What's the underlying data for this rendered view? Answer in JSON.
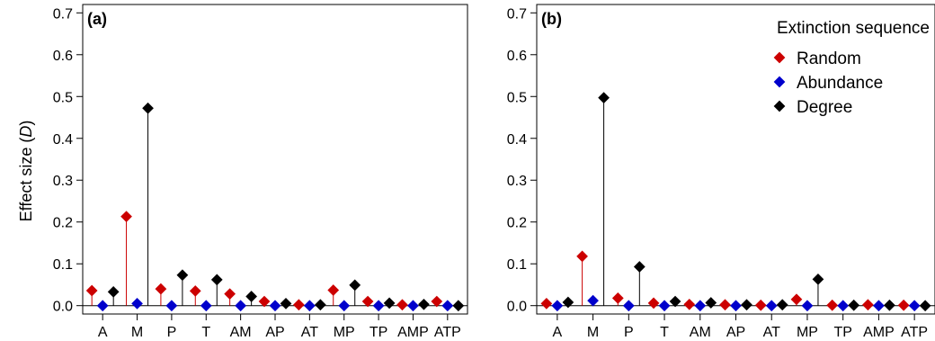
{
  "figure": {
    "ylabel_prefix": "Effect size (",
    "ylabel_var": "D",
    "ylabel_suffix": ")",
    "legend": {
      "title": "Extinction sequence",
      "entries": [
        {
          "label": "Random",
          "color": "#cc0000"
        },
        {
          "label": "Abundance",
          "color": "#0000cc"
        },
        {
          "label": "Degree",
          "color": "#000000"
        }
      ]
    }
  },
  "chart_data": [
    {
      "type": "scatter",
      "panel_label": "(a)",
      "categories": [
        "A",
        "M",
        "P",
        "T",
        "AM",
        "AP",
        "AT",
        "MP",
        "TP",
        "AMP",
        "ATP"
      ],
      "ylim": [
        -0.02,
        0.72
      ],
      "yticks": [
        "0.0",
        "0.1",
        "0.2",
        "0.3",
        "0.4",
        "0.5",
        "0.6",
        "0.7"
      ],
      "series": [
        {
          "name": "Random",
          "color": "#cc0000",
          "values": [
            0.036,
            0.213,
            0.04,
            0.035,
            0.028,
            0.01,
            0.002,
            0.037,
            0.01,
            0.002,
            0.01
          ]
        },
        {
          "name": "Abundance",
          "color": "#0000cc",
          "values": [
            0.0,
            0.005,
            0.0,
            0.0,
            0.0,
            0.0,
            0.0,
            0.0,
            0.0,
            0.0,
            0.0
          ]
        },
        {
          "name": "Degree",
          "color": "#000000",
          "values": [
            0.033,
            0.472,
            0.073,
            0.062,
            0.022,
            0.005,
            0.002,
            0.049,
            0.006,
            0.003,
            0.0
          ]
        }
      ]
    },
    {
      "type": "scatter",
      "panel_label": "(b)",
      "categories": [
        "A",
        "M",
        "P",
        "T",
        "AM",
        "AP",
        "AT",
        "MP",
        "TP",
        "AMP",
        "ATP"
      ],
      "ylim": [
        -0.02,
        0.72
      ],
      "yticks": [
        "0.0",
        "0.1",
        "0.2",
        "0.3",
        "0.4",
        "0.5",
        "0.6",
        "0.7"
      ],
      "series": [
        {
          "name": "Random",
          "color": "#cc0000",
          "values": [
            0.005,
            0.118,
            0.018,
            0.006,
            0.003,
            0.002,
            0.001,
            0.015,
            0.001,
            0.002,
            0.001
          ]
        },
        {
          "name": "Abundance",
          "color": "#0000cc",
          "values": [
            0.0,
            0.012,
            0.0,
            0.0,
            0.0,
            0.0,
            0.0,
            0.0,
            0.0,
            0.0,
            0.0
          ]
        },
        {
          "name": "Degree",
          "color": "#000000",
          "values": [
            0.008,
            0.497,
            0.093,
            0.01,
            0.007,
            0.002,
            0.002,
            0.063,
            0.001,
            0.001,
            0.0
          ]
        }
      ]
    }
  ]
}
